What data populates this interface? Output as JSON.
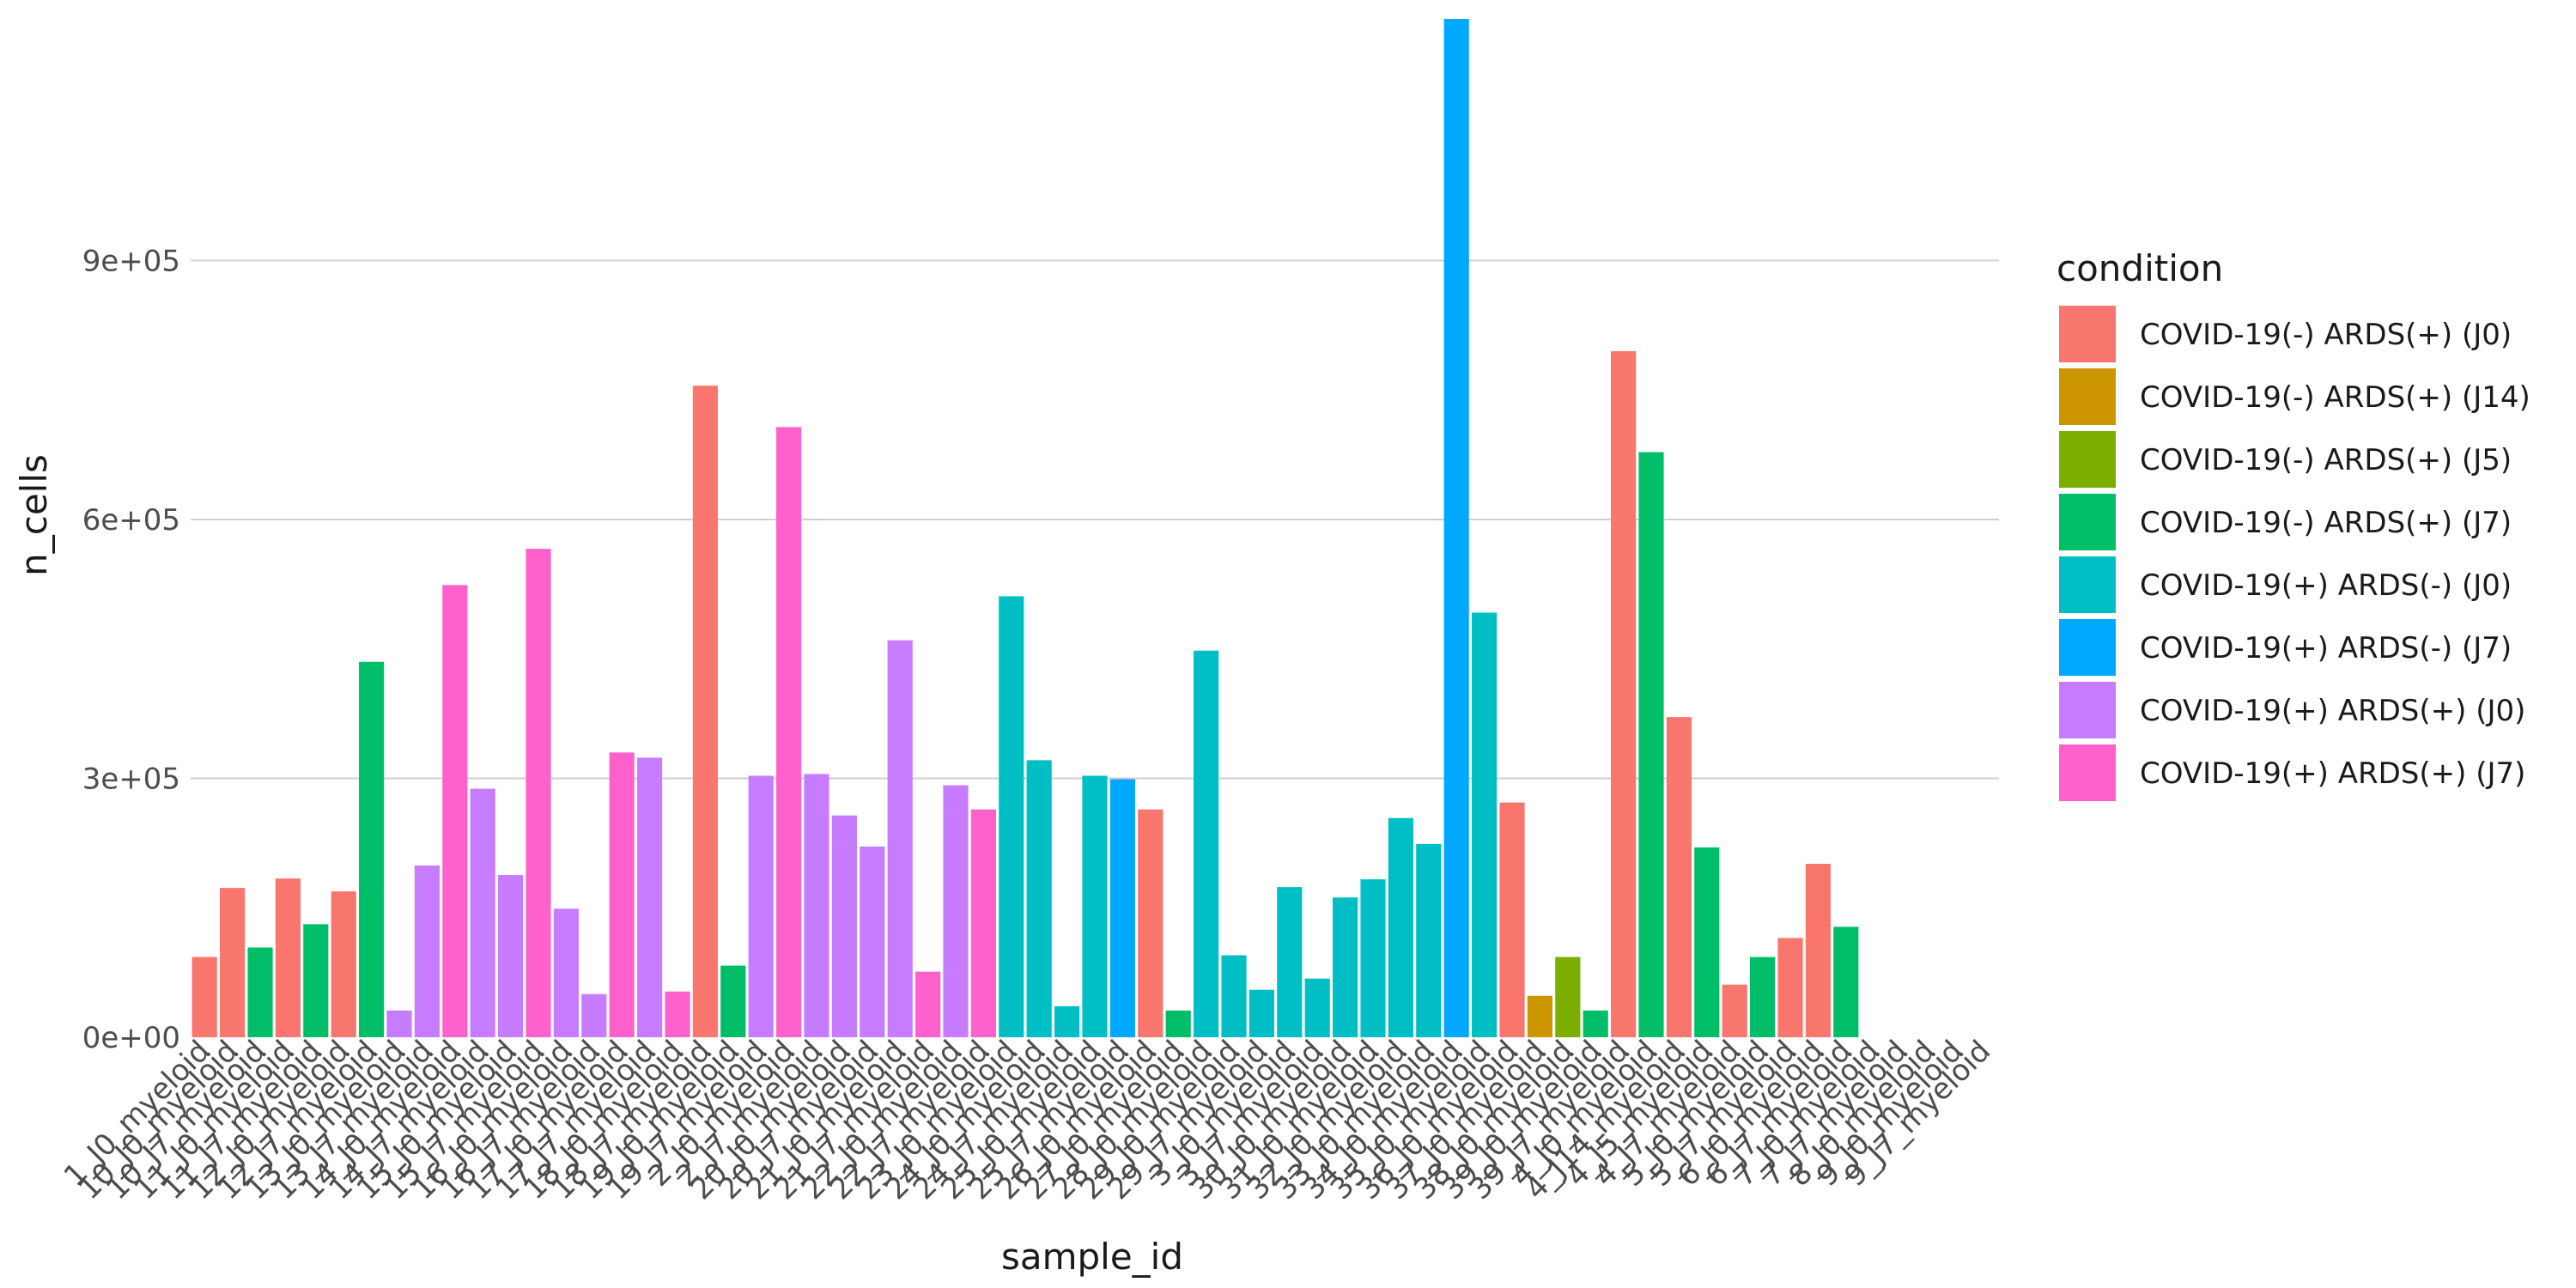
{
  "chart_data": {
    "type": "bar",
    "xlabel": "sample_id",
    "ylabel": "n_cells",
    "ylim": [
      0,
      1180000
    ],
    "yticks": [
      {
        "value": 0,
        "label": "0e+00"
      },
      {
        "value": 300000,
        "label": "3e+05"
      },
      {
        "value": 600000,
        "label": "6e+05"
      },
      {
        "value": 900000,
        "label": "9e+05"
      }
    ],
    "grid": "horizontal major only",
    "legend": {
      "title": "condition",
      "position": "right",
      "entries": [
        {
          "label": "COVID-19(-) ARDS(+) (J0)",
          "color": "#F8766D"
        },
        {
          "label": "COVID-19(-) ARDS(+) (J14)",
          "color": "#CD9600"
        },
        {
          "label": "COVID-19(-) ARDS(+) (J5)",
          "color": "#7CAE00"
        },
        {
          "label": "COVID-19(-) ARDS(+) (J7)",
          "color": "#00BE67"
        },
        {
          "label": "COVID-19(+) ARDS(-) (J0)",
          "color": "#00BFC4"
        },
        {
          "label": "COVID-19(+) ARDS(-) (J7)",
          "color": "#00A9FF"
        },
        {
          "label": "COVID-19(+) ARDS(+) (J0)",
          "color": "#C77CFF"
        },
        {
          "label": "COVID-19(+) ARDS(+) (J7)",
          "color": "#FF61CC"
        }
      ]
    },
    "categories": [
      "1_J0_myeloid",
      "10_J0_myeloid",
      "10_J7_myeloid",
      "11_J0_myeloid",
      "11_J7_myeloid",
      "12_J0_myeloid",
      "12_J7_myeloid",
      "13_J0_myeloid",
      "13_J7_myeloid",
      "14_J0_myeloid",
      "14_J7_myeloid",
      "15_J0_myeloid",
      "15_J7_myeloid",
      "16_J0_myeloid",
      "16_J7_myeloid",
      "17_J0_myeloid",
      "17_J7_myeloid",
      "18_J0_myeloid",
      "18_J7_myeloid",
      "19_J0_myeloid",
      "19_J7_myeloid",
      "2_J0_myeloid",
      "2_J7_myeloid",
      "20_J0_myeloid",
      "20_J7_myeloid",
      "21_J0_myeloid",
      "21_J7_myeloid",
      "22_J0_myeloid",
      "22_J7_myeloid",
      "23_J0_myeloid",
      "24_J0_myeloid",
      "24_J7_myeloid",
      "25_J0_myeloid",
      "25_J7_myeloid",
      "26_J0_myeloid",
      "27_J0_myeloid",
      "28_J0_myeloid",
      "29_J0_myeloid",
      "29_J7_myeloid",
      "3_J0_myeloid",
      "3_J7_myeloid",
      "30_J0_myeloid",
      "31_J0_myeloid",
      "32_J0_myeloid",
      "33_J0_myeloid",
      "34_J0_myeloid",
      "35_J0_myeloid",
      "36_J0_myeloid",
      "37_J0_myeloid",
      "38_J0_myeloid",
      "39_J0_myeloid",
      "39_J7_myeloid",
      "4_J0_myeloid",
      "4_J14_myeloid",
      "4_J5_myeloid",
      "4_J7_myeloid",
      "5_J0_myeloid",
      "5_J7_myeloid",
      "6_J0_myeloid",
      "6_J7_myeloid",
      "7_J0_myeloid",
      "7_J7_myeloid",
      "8_J0_myeloid",
      "9_J0_myeloid",
      "9_J7_myeloid"
    ],
    "values": [
      93000,
      173000,
      104000,
      184000,
      131000,
      169000,
      435000,
      31000,
      199000,
      524000,
      288000,
      188000,
      566000,
      149000,
      50000,
      330000,
      324000,
      53000,
      755000,
      83000,
      303000,
      707000,
      305000,
      257000,
      221000,
      460000,
      76000,
      292000,
      264000,
      511000,
      321000,
      36000,
      303000,
      299000,
      264000,
      31000,
      448000,
      95000,
      55000,
      174000,
      68000,
      162000,
      183000,
      254000,
      224000,
      1180000,
      492000,
      272000,
      48000,
      93000,
      31000,
      795000,
      678000,
      371000,
      220000,
      61000,
      93000,
      115000,
      201000,
      128000,
      0,
      0,
      0,
      0,
      0
    ],
    "bar_conditions": [
      "COVID-19(-) ARDS(+) (J0)",
      "COVID-19(-) ARDS(+) (J0)",
      "COVID-19(-) ARDS(+) (J7)",
      "COVID-19(-) ARDS(+) (J0)",
      "COVID-19(-) ARDS(+) (J7)",
      "COVID-19(-) ARDS(+) (J0)",
      "COVID-19(-) ARDS(+) (J7)",
      "COVID-19(+) ARDS(+) (J0)",
      "COVID-19(+) ARDS(+) (J0)",
      "COVID-19(+) ARDS(+) (J7)",
      "COVID-19(+) ARDS(+) (J0)",
      "COVID-19(+) ARDS(+) (J0)",
      "COVID-19(+) ARDS(+) (J7)",
      "COVID-19(+) ARDS(+) (J0)",
      "COVID-19(+) ARDS(+) (J0)",
      "COVID-19(+) ARDS(+) (J7)",
      "COVID-19(+) ARDS(+) (J0)",
      "COVID-19(+) ARDS(+) (J7)",
      "COVID-19(-) ARDS(+) (J0)",
      "COVID-19(-) ARDS(+) (J7)",
      "COVID-19(+) ARDS(+) (J0)",
      "COVID-19(+) ARDS(+) (J7)",
      "COVID-19(+) ARDS(+) (J0)",
      "COVID-19(+) ARDS(+) (J0)",
      "COVID-19(+) ARDS(+) (J0)",
      "COVID-19(+) ARDS(+) (J0)",
      "COVID-19(+) ARDS(+) (J7)",
      "COVID-19(+) ARDS(+) (J0)",
      "COVID-19(+) ARDS(+) (J7)",
      "COVID-19(+) ARDS(-) (J0)",
      "COVID-19(+) ARDS(-) (J0)",
      "COVID-19(+) ARDS(-) (J0)",
      "COVID-19(+) ARDS(-) (J0)",
      "COVID-19(+) ARDS(-) (J7)",
      "COVID-19(-) ARDS(+) (J0)",
      "COVID-19(-) ARDS(+) (J7)",
      "COVID-19(+) ARDS(-) (J0)",
      "COVID-19(+) ARDS(-) (J0)",
      "COVID-19(+) ARDS(-) (J0)",
      "COVID-19(+) ARDS(-) (J0)",
      "COVID-19(+) ARDS(-) (J0)",
      "COVID-19(+) ARDS(-) (J0)",
      "COVID-19(+) ARDS(-) (J0)",
      "COVID-19(+) ARDS(-) (J0)",
      "COVID-19(+) ARDS(-) (J0)",
      "COVID-19(+) ARDS(-) (J7)",
      "COVID-19(+) ARDS(-) (J0)",
      "COVID-19(-) ARDS(+) (J0)",
      "COVID-19(-) ARDS(+) (J14)",
      "COVID-19(-) ARDS(+) (J5)",
      "COVID-19(-) ARDS(+) (J7)",
      "COVID-19(-) ARDS(+) (J0)",
      "COVID-19(-) ARDS(+) (J7)",
      "COVID-19(-) ARDS(+) (J0)",
      "COVID-19(-) ARDS(+) (J7)",
      "COVID-19(-) ARDS(+) (J0)",
      "COVID-19(-) ARDS(+) (J7)",
      "COVID-19(-) ARDS(+) (J0)",
      "COVID-19(-) ARDS(+) (J0)",
      "COVID-19(-) ARDS(+) (J7)",
      "COVID-19(-) ARDS(+) (J0)",
      "COVID-19(-) ARDS(+) (J0)",
      "COVID-19(-) ARDS(+) (J0)",
      "COVID-19(-) ARDS(+) (J0)",
      "COVID-19(-) ARDS(+) (J0)"
    ]
  }
}
